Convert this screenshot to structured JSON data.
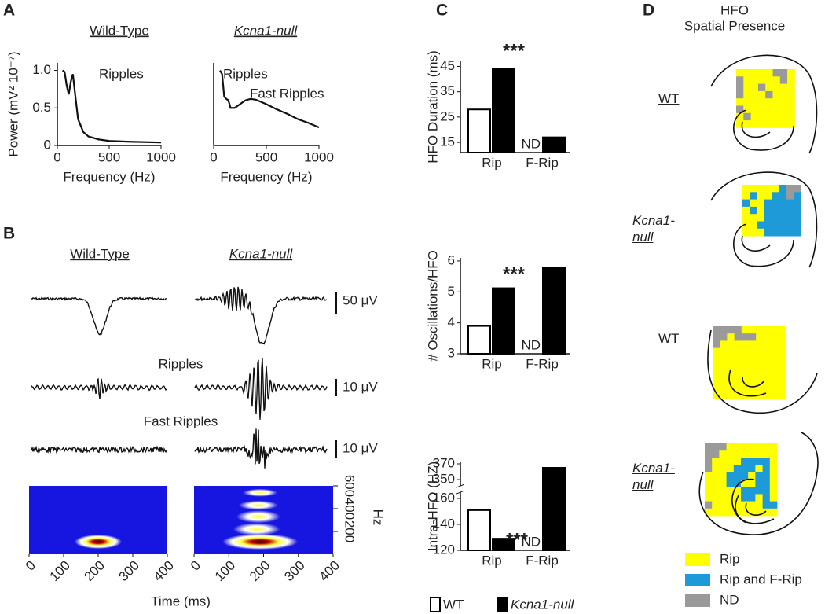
{
  "panel_labels": [
    "A",
    "B",
    "C",
    "D"
  ],
  "chart_data": [
    {
      "type": "line",
      "title": "Wild-Type",
      "x_label": "Frequency (Hz)",
      "y_label": "Power (mV² 10⁻⁷)",
      "annotations": [
        "Ripples"
      ],
      "x": [
        50,
        70,
        90,
        110,
        130,
        150,
        170,
        200,
        250,
        300,
        400,
        500,
        700,
        1000
      ],
      "series": [
        {
          "color": "#111111",
          "values": [
            1.0,
            0.98,
            0.8,
            0.68,
            0.85,
            0.95,
            0.7,
            0.35,
            0.18,
            0.12,
            0.08,
            0.06,
            0.05,
            0.04
          ]
        }
      ],
      "xlim": [
        0,
        1000
      ],
      "xticks": [
        0,
        500,
        1000
      ],
      "ylim": [
        0,
        1.1
      ],
      "yticks": [
        0,
        0.5,
        {
          "value": 1,
          "label": "1.0"
        }
      ]
    },
    {
      "type": "line",
      "title": "Kcna1-null",
      "x_label": "Frequency (Hz)",
      "annotations": [
        "Ripples",
        "Fast Ripples"
      ],
      "x": [
        60,
        80,
        100,
        120,
        140,
        160,
        200,
        250,
        300,
        350,
        400,
        500,
        600,
        700,
        800,
        900,
        1000
      ],
      "series": [
        {
          "color": "#111111",
          "values": [
            1.0,
            0.95,
            0.65,
            0.62,
            0.6,
            0.5,
            0.5,
            0.55,
            0.6,
            0.62,
            0.61,
            0.55,
            0.48,
            0.42,
            0.35,
            0.3,
            0.24
          ]
        }
      ],
      "xlim": [
        0,
        1000
      ],
      "xticks": [
        0,
        500,
        1000
      ],
      "ylim": [
        0,
        1.1
      ]
    },
    {
      "type": "bar",
      "y_label": "HFO Duration (ms)",
      "categories": [
        "Rip",
        "F-Rip"
      ],
      "annotations": [
        "***",
        "ND"
      ],
      "series": [
        {
          "name": "WT",
          "color": "#ffffff",
          "values": [
            28,
            null
          ]
        },
        {
          "name": "Kcna1-null",
          "color": "#000000",
          "values": [
            44,
            17
          ]
        }
      ],
      "ylim": [
        11,
        47
      ],
      "yticks": [
        15,
        25,
        35,
        45
      ]
    },
    {
      "type": "bar",
      "y_label": "# Oscillations/HFO",
      "categories": [
        "Rip",
        "F-Rip"
      ],
      "annotations": [
        "***",
        "ND"
      ],
      "series": [
        {
          "name": "WT",
          "color": "#ffffff",
          "values": [
            3.9,
            null
          ]
        },
        {
          "name": "Kcna1-null",
          "color": "#000000",
          "values": [
            5.12,
            5.78
          ]
        }
      ],
      "ylim": [
        3,
        6.1
      ],
      "yticks": [
        3,
        4,
        5,
        6
      ]
    },
    {
      "type": "bar",
      "y_label": "Intra-HFO (HZ)",
      "categories": [
        "Rip",
        "F-Rip"
      ],
      "annotations": [
        "***",
        "ND"
      ],
      "series": [
        {
          "name": "WT",
          "color": "#ffffff",
          "values": [
            151,
            null
          ]
        },
        {
          "name": "Kcna1-null",
          "color": "#000000",
          "values": [
            129,
            365
          ]
        }
      ],
      "ylim": [
        120,
        372
      ],
      "ybreak": [
        163,
        345
      ],
      "yticks": [
        120,
        140,
        160,
        350,
        370
      ]
    }
  ],
  "traces": {
    "titles": [
      "Wild-Type",
      "Kcna1-null"
    ],
    "band_labels": [
      "Ripples",
      "Fast Ripples"
    ],
    "scale_labels": [
      "50 μV",
      "10 μV",
      "10 μV"
    ]
  },
  "spectrogram": {
    "x_label": "Time (ms)",
    "y_label": "Hz",
    "xlim": [
      0,
      400
    ],
    "xticks": [
      0,
      100,
      200,
      300,
      400
    ],
    "ylim": [
      0,
      600
    ],
    "yticks": [
      200,
      400,
      600
    ]
  },
  "spatial": {
    "title": [
      "HFO",
      "Spatial Presence"
    ],
    "rows": [
      "WT",
      "Kcna1-null",
      "WT",
      "Kcna1-null"
    ],
    "legend": [
      {
        "label": "Rip",
        "color": "#ffff00"
      },
      {
        "label": "Rip and F-Rip",
        "color": "#1e9ad9"
      },
      {
        "label": "ND",
        "color": "#9a9a9a"
      }
    ]
  }
}
